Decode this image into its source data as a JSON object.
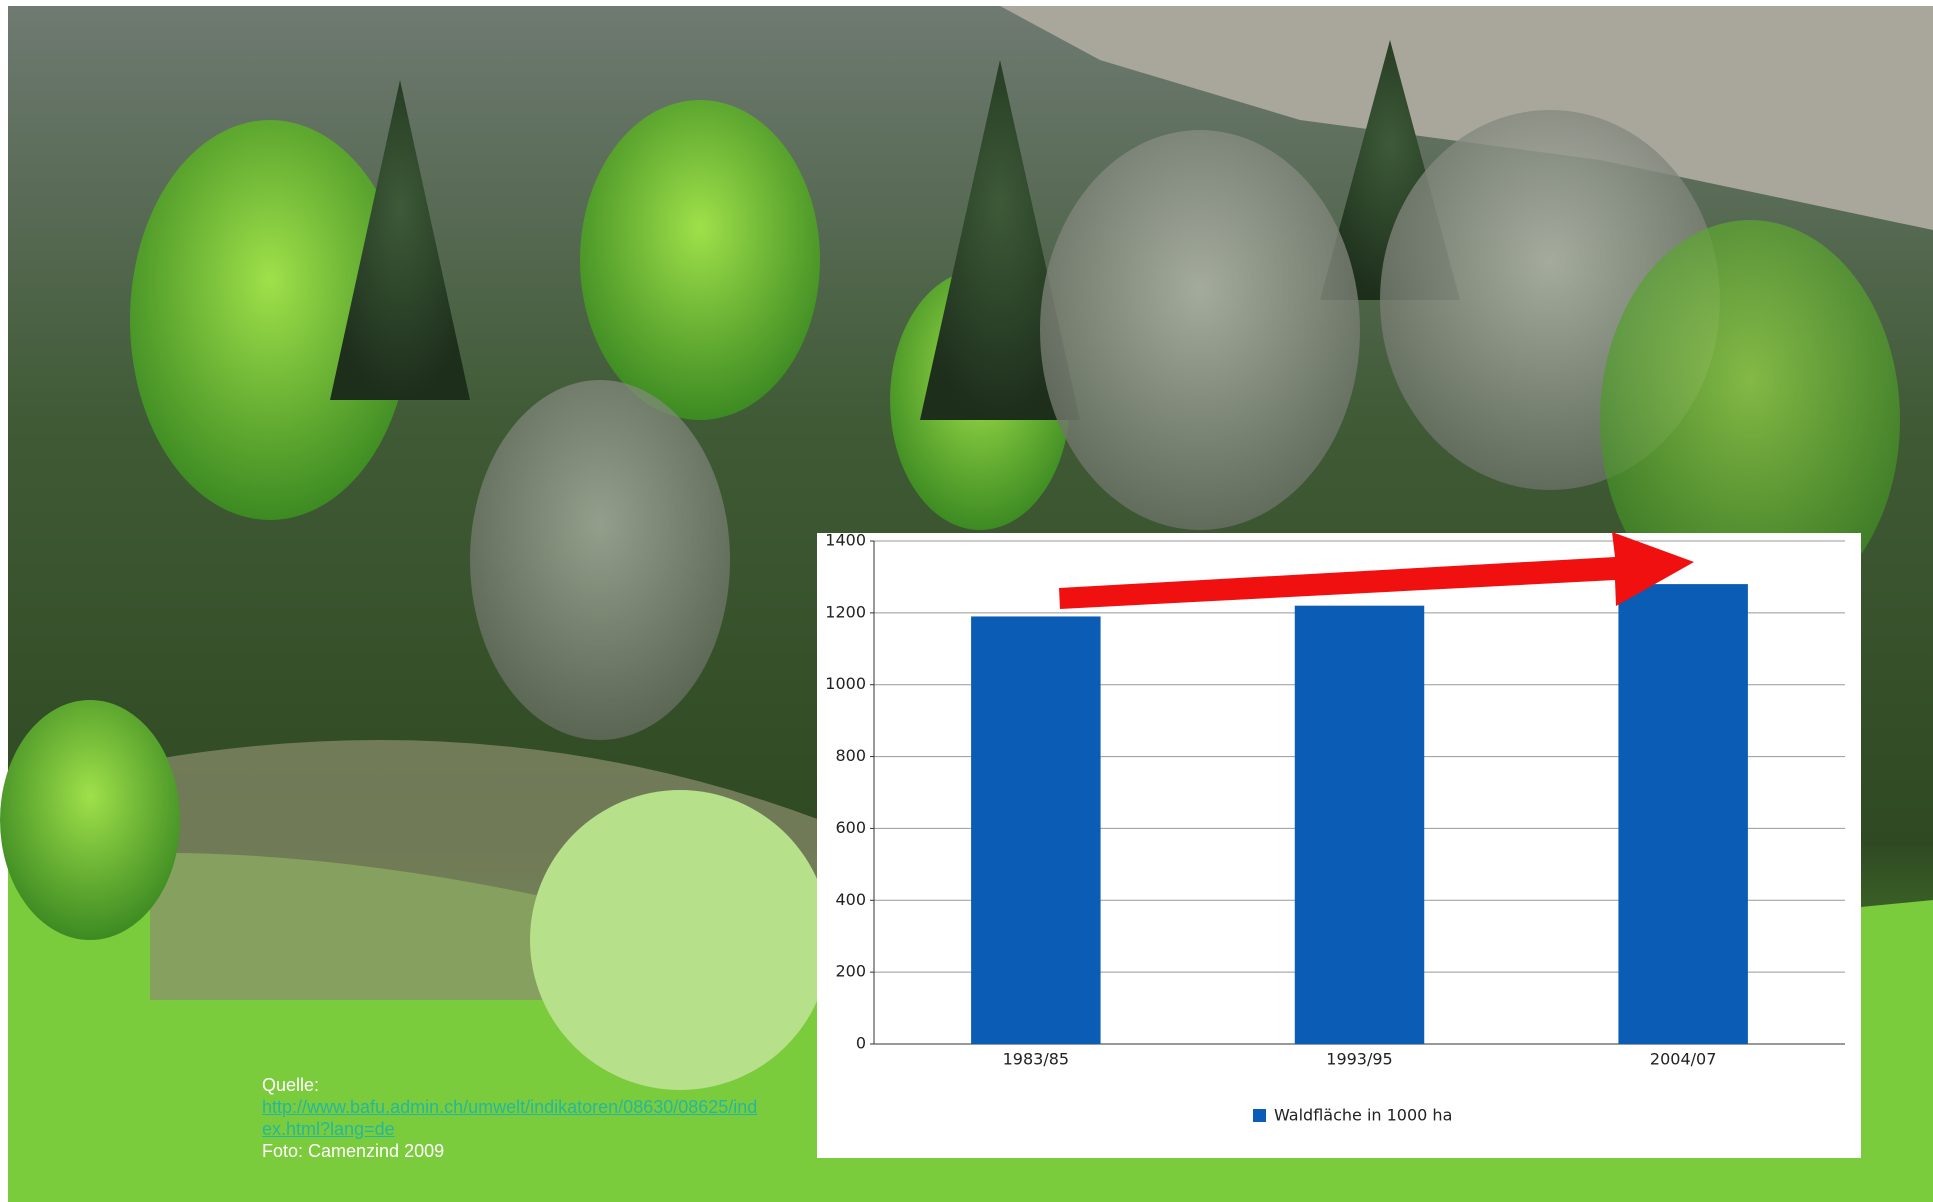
{
  "caption": {
    "source_label": "Quelle:",
    "source_link": "http://www.bafu.admin.ch/umwelt/indikatoren/08630/08625/index.html?lang=de",
    "photo_credit": "Foto: Camenzind 2009"
  },
  "chart_data": {
    "type": "bar",
    "categories": [
      "1983/85",
      "1993/95",
      "2004/07"
    ],
    "series": [
      {
        "name": "Waldfläche in 1000 ha",
        "color": "#0b5cb5",
        "values": [
          1190,
          1220,
          1280
        ]
      }
    ],
    "ylim": [
      0,
      1400
    ],
    "yticks": [
      0,
      200,
      400,
      600,
      800,
      1000,
      1200,
      1400
    ],
    "grid": true,
    "legend": "bottom"
  }
}
